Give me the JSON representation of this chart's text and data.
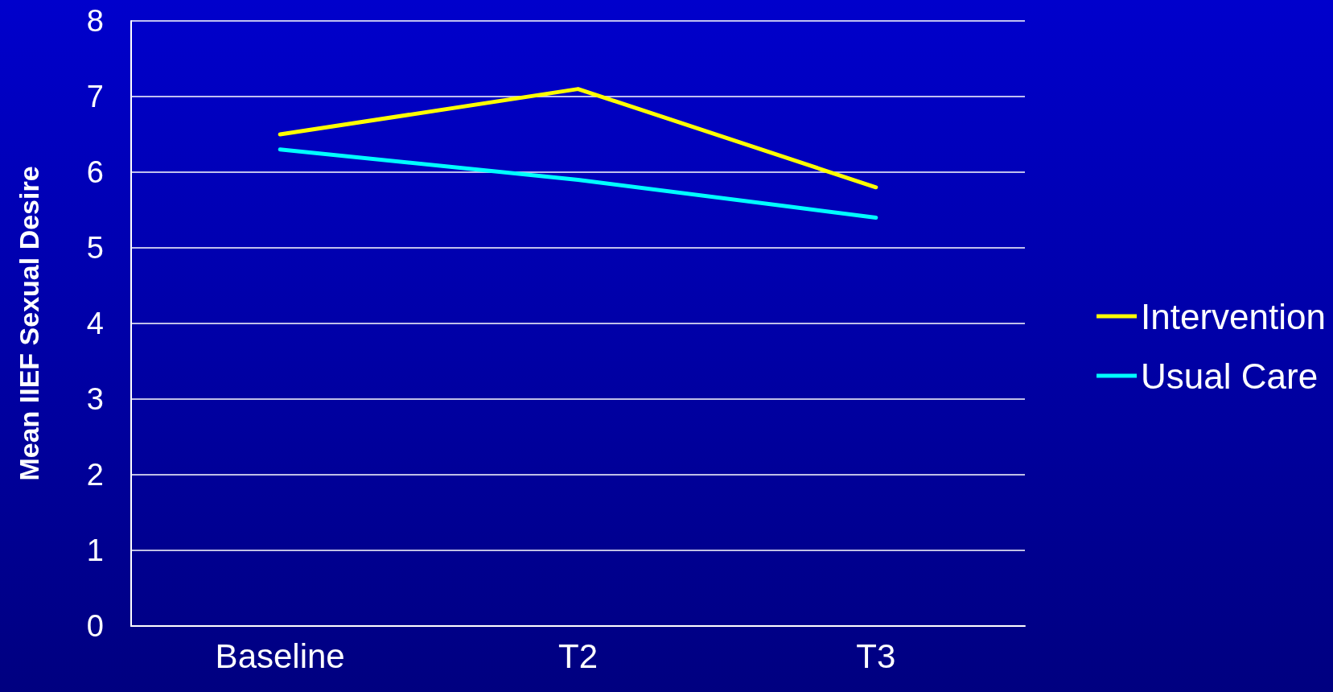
{
  "chart_data": {
    "type": "line",
    "ylabel": "Mean IIEF Sexual Desire",
    "categories": [
      "Baseline",
      "T2",
      "T3"
    ],
    "series": [
      {
        "name": "Intervention",
        "color": "#ffff00",
        "values": [
          6.5,
          7.1,
          5.8
        ]
      },
      {
        "name": "Usual Care",
        "color": "#00ffff",
        "values": [
          6.3,
          5.9,
          5.4
        ]
      }
    ],
    "ylim": [
      0,
      8
    ],
    "yticks": [
      0,
      1,
      2,
      3,
      4,
      5,
      6,
      7,
      8
    ],
    "grid": "y",
    "legend": "right",
    "marker": "none",
    "line_style": "solid"
  }
}
